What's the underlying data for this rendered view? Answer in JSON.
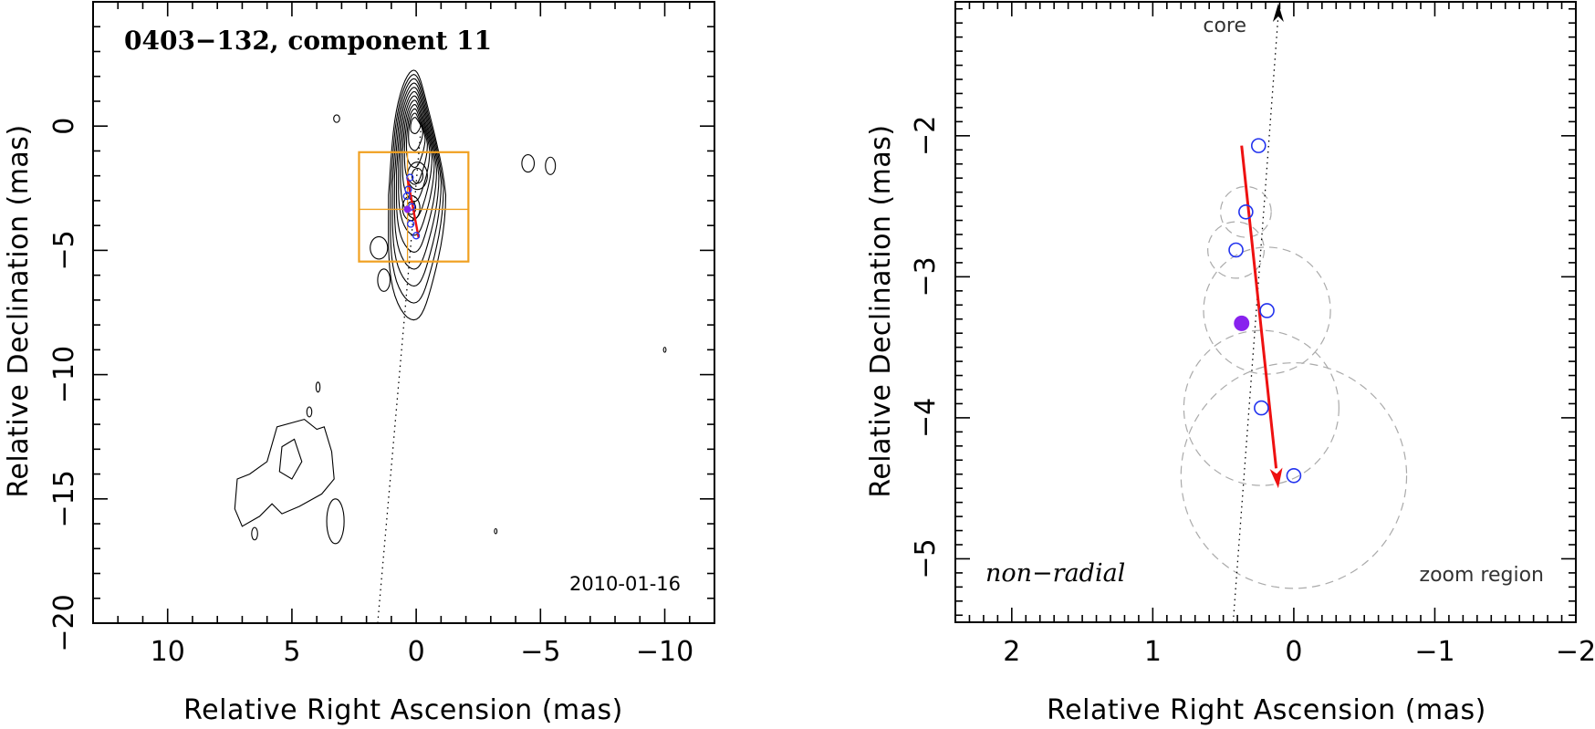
{
  "chart_data": [
    {
      "type": "contour",
      "title": "0403−132, component 11",
      "date": "2010-01-16",
      "xlabel": "Relative Right Ascension (mas)",
      "ylabel": "Relative Declination (mas)",
      "xlim": [
        13,
        -12
      ],
      "ylim": [
        -20,
        5
      ],
      "x_ticks": [
        10,
        5,
        0,
        -5,
        -10
      ],
      "x_tick_labels": [
        "10",
        "5",
        "0",
        "−5",
        "−10"
      ],
      "y_ticks": [
        0,
        -5,
        -10,
        -15,
        -20
      ],
      "y_tick_labels": [
        "0",
        "−5",
        "−10",
        "−15",
        "−20"
      ],
      "ridge_line": [
        [
          1.55,
          -20
        ],
        [
          -0.2,
          0
        ]
      ],
      "contour_peak": [
        0.05,
        0.1
      ],
      "n_contour_levels": 12,
      "zoom_box": {
        "x": [
          2.3,
          -2.1
        ],
        "y": [
          -5.45,
          -1.05
        ],
        "center": [
          0.35,
          -3.35
        ]
      },
      "motion_vector": {
        "from": [
          0.35,
          -2.1
        ],
        "to": [
          -0.1,
          -4.5
        ]
      },
      "components": [
        [
          0.25,
          -2.07
        ],
        [
          0.32,
          -2.55
        ],
        [
          0.38,
          -2.82
        ],
        [
          0.18,
          -3.25
        ],
        [
          0.22,
          -3.94
        ],
        [
          0.0,
          -4.41
        ]
      ],
      "mean_position": [
        0.35,
        -3.35
      ]
    },
    {
      "type": "scatter",
      "xlabel": "Relative Right Ascension (mas)",
      "ylabel": "Relative Declination (mas)",
      "xlim": [
        2.4,
        -2.0
      ],
      "ylim": [
        -5.45,
        -1.05
      ],
      "x_ticks": [
        2,
        1,
        0,
        -1,
        -2
      ],
      "x_tick_labels": [
        "2",
        "1",
        "0",
        "−1",
        "−2"
      ],
      "y_ticks": [
        -2,
        -3,
        -4,
        -5
      ],
      "y_tick_labels": [
        "−2",
        "−3",
        "−4",
        "−5"
      ],
      "core_label": "core",
      "motion_label": "non−radial",
      "zoom_label": "zoom region",
      "core_direction_line": [
        [
          0.43,
          -5.45
        ],
        [
          0.11,
          -1.05
        ]
      ],
      "motion_vector": {
        "from": [
          0.37,
          -2.07
        ],
        "to": [
          0.11,
          -4.5
        ],
        "color": "#ee1111"
      },
      "components": [
        {
          "x": 0.25,
          "y": -2.07,
          "radius": 0.0
        },
        {
          "x": 0.34,
          "y": -2.54,
          "radius": 0.18
        },
        {
          "x": 0.41,
          "y": -2.81,
          "radius": 0.2
        },
        {
          "x": 0.19,
          "y": -3.24,
          "radius": 0.45
        },
        {
          "x": 0.23,
          "y": -3.93,
          "radius": 0.55
        },
        {
          "x": 0.0,
          "y": -4.41,
          "radius": 0.8
        }
      ],
      "mean_position": {
        "x": 0.37,
        "y": -3.33,
        "color": "#8822ee"
      },
      "colors": {
        "component": "#2233ee",
        "error_circle": "#aaaaaa",
        "vector": "#ee1111",
        "zoom_box": "#f0a020"
      }
    }
  ]
}
